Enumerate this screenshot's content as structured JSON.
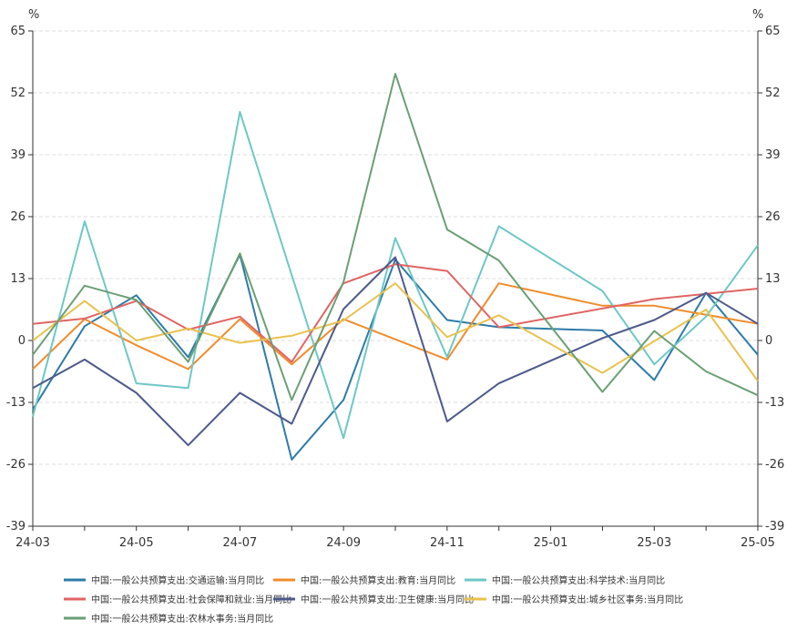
{
  "chart_data": {
    "type": "line",
    "y_unit_left": "%",
    "y_unit_right": "%",
    "ylim": [
      -39,
      65
    ],
    "y_ticks": [
      65,
      52,
      39,
      26,
      13,
      0,
      -13,
      -26,
      -39
    ],
    "y_tick_labels": [
      "65",
      "52",
      "39",
      "26",
      "13",
      "0",
      "-13",
      "-26",
      "-39"
    ],
    "x": [
      "24-03",
      "24-04",
      "24-05",
      "24-06",
      "24-07",
      "24-08",
      "24-09",
      "24-10",
      "24-11",
      "24-12",
      "25-01",
      "25-02",
      "25-03",
      "25-04",
      "25-05"
    ],
    "x_tick_labels": [
      "24-03",
      "24-05",
      "24-07",
      "24-09",
      "24-11",
      "25-01",
      "25-03",
      "25-05"
    ],
    "grid": "horizontal dashed",
    "legend_position": "bottom",
    "series": [
      {
        "name": "中国:一般公共预算支出:交通运输:当月同比",
        "color": "#2e7ba8",
        "values": [
          -14.5,
          3,
          9.5,
          -3.5,
          18,
          -25,
          -12.5,
          17,
          4.3,
          2.8,
          null,
          2.1,
          -8.3,
          10,
          -3
        ]
      },
      {
        "name": "中国:一般公共预算支出:教育:当月同比",
        "color": "#f08c2a",
        "values": [
          -6,
          4.5,
          -1,
          -6,
          4.5,
          -5,
          4.5,
          null,
          -4,
          12,
          null,
          7.3,
          7.3,
          null,
          3.5
        ]
      },
      {
        "name": "中国:一般公共预算支出:科学技术:当月同比",
        "color": "#6ec7c7",
        "values": [
          -16,
          25,
          -9,
          -10,
          48,
          null,
          -20.5,
          21.5,
          -3.5,
          24,
          null,
          10.4,
          -5,
          5,
          20
        ]
      },
      {
        "name": "中国:一般公共预算支出:社会保障和就业:当月同比",
        "color": "#e06464",
        "values": [
          3.5,
          4.6,
          8.3,
          2.3,
          5,
          -4.5,
          12,
          16,
          14.6,
          2.8,
          null,
          null,
          8.7,
          null,
          10.9
        ]
      },
      {
        "name": "中国:一般公共预算支出:卫生健康:当月同比",
        "color": "#4c5a8a",
        "values": [
          -10,
          -4,
          -11,
          -22,
          -11,
          -17.5,
          6.6,
          17.5,
          -17,
          -9,
          null,
          0.5,
          4.3,
          10,
          3.5
        ]
      },
      {
        "name": "中国:一般公共预算支出:城乡社区事务:当月同比",
        "color": "#e8c24e",
        "values": [
          0,
          8.3,
          0,
          2.5,
          -0.5,
          1,
          4.2,
          12,
          0.7,
          5.3,
          null,
          -6.8,
          null,
          6.5,
          -8.5
        ]
      },
      {
        "name": "中国:一般公共预算支出:农林水事务:当月同比",
        "color": "#6a9f74",
        "values": [
          -3,
          11.5,
          8.5,
          -4.5,
          18.3,
          -12.5,
          12.3,
          56,
          23.3,
          16.8,
          null,
          -10.8,
          2,
          -6.5,
          -11.5
        ]
      }
    ]
  }
}
